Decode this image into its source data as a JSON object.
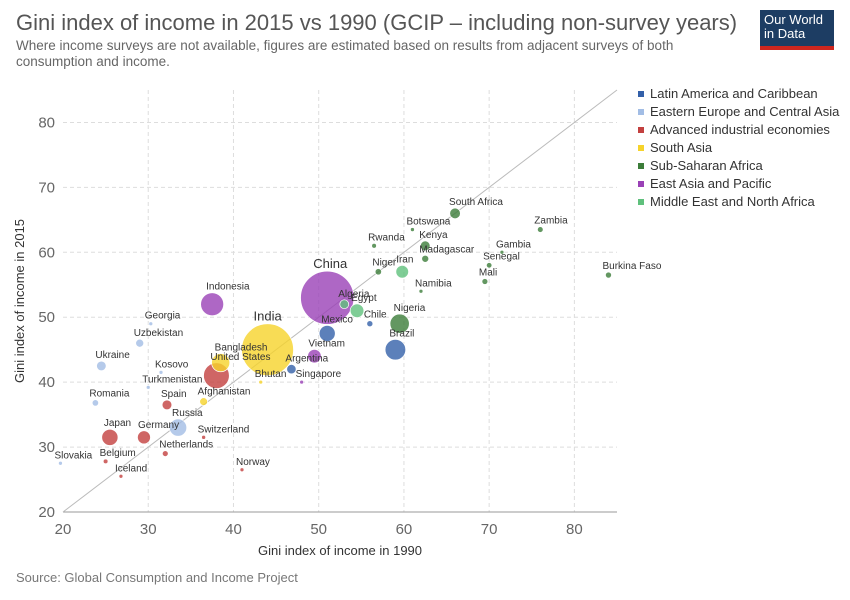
{
  "title": "Gini index of income in 2015 vs 1990 (GCIP – including non-survey years)",
  "subtitle": "Where income surveys are not available, figures are estimated based on results from adjacent surveys of both consumption and income.",
  "logo": {
    "line1": "Our World",
    "line2": "in Data"
  },
  "source": "Source: Global Consumption and Income Project",
  "colors": {
    "Latin America and Caribbean": "#3360a9",
    "Eastern Europe and Central Asia": "#a2bde5",
    "Advanced industrial economies": "#c3403f",
    "South Asia": "#f6d32b",
    "Sub-Saharan Africa": "#3c7d39",
    "East Asia and Pacific": "#9a41b6",
    "Middle East and North Africa": "#5fc07c"
  },
  "chart_data": {
    "type": "scatter",
    "xlabel": "Gini index of income in 1990",
    "ylabel": "Gini index of income in 2015",
    "xlim": [
      20,
      85
    ],
    "ylim": [
      20,
      85
    ],
    "xticks": [
      20,
      30,
      40,
      50,
      60,
      70,
      80
    ],
    "yticks": [
      20,
      30,
      40,
      50,
      60,
      70,
      80
    ],
    "grid": true,
    "legend_position": "right",
    "legend": [
      "Latin America and Caribbean",
      "Eastern Europe and Central Asia",
      "Advanced industrial economies",
      "South Asia",
      "Sub-Saharan Africa",
      "East Asia and Pacific",
      "Middle East and North Africa"
    ],
    "points": [
      {
        "label": "China",
        "x": 51,
        "y": 53,
        "size": 1370,
        "region": "East Asia and Pacific",
        "big": true
      },
      {
        "label": "India",
        "x": 44,
        "y": 45,
        "size": 1300,
        "region": "South Asia",
        "big": true
      },
      {
        "label": "Indonesia",
        "x": 37.5,
        "y": 52,
        "size": 255,
        "region": "East Asia and Pacific"
      },
      {
        "label": "United States",
        "x": 38,
        "y": 41,
        "size": 320,
        "region": "Advanced industrial economies"
      },
      {
        "label": "Bangladesh",
        "x": 38.5,
        "y": 43,
        "size": 160,
        "region": "South Asia"
      },
      {
        "label": "Brazil",
        "x": 59,
        "y": 45,
        "size": 205,
        "region": "Latin America and Caribbean"
      },
      {
        "label": "Nigeria",
        "x": 59.5,
        "y": 49,
        "size": 180,
        "region": "Sub-Saharan Africa"
      },
      {
        "label": "Mexico",
        "x": 51,
        "y": 47.5,
        "size": 125,
        "region": "Latin America and Caribbean"
      },
      {
        "label": "Vietnam",
        "x": 49.5,
        "y": 44,
        "size": 90,
        "region": "East Asia and Pacific"
      },
      {
        "label": "Japan",
        "x": 25.5,
        "y": 31.5,
        "size": 127,
        "region": "Advanced industrial economies"
      },
      {
        "label": "Germany",
        "x": 29.5,
        "y": 31.5,
        "size": 82,
        "region": "Advanced industrial economies"
      },
      {
        "label": "Russia",
        "x": 33.5,
        "y": 33,
        "size": 145,
        "region": "Eastern Europe and Central Asia"
      },
      {
        "label": "Egypt",
        "x": 54.5,
        "y": 51,
        "size": 90,
        "region": "Middle East and North Africa"
      },
      {
        "label": "Iran",
        "x": 59.8,
        "y": 57,
        "size": 78,
        "region": "Middle East and North Africa"
      },
      {
        "label": "Algeria",
        "x": 53,
        "y": 52,
        "size": 38,
        "region": "Middle East and North Africa"
      },
      {
        "label": "Argentina",
        "x": 46.8,
        "y": 42,
        "size": 43,
        "region": "Latin America and Caribbean"
      },
      {
        "label": "Chile",
        "x": 56,
        "y": 49,
        "size": 18,
        "region": "Latin America and Caribbean"
      },
      {
        "label": "Spain",
        "x": 32.2,
        "y": 36.5,
        "size": 46,
        "region": "Advanced industrial economies"
      },
      {
        "label": "Afghanistan",
        "x": 36.5,
        "y": 37,
        "size": 30,
        "region": "South Asia"
      },
      {
        "label": "Switzerland",
        "x": 36.5,
        "y": 31.5,
        "size": 8,
        "region": "Advanced industrial economies"
      },
      {
        "label": "Netherlands",
        "x": 32,
        "y": 29,
        "size": 17,
        "region": "Advanced industrial economies"
      },
      {
        "label": "Norway",
        "x": 41,
        "y": 26.5,
        "size": 5,
        "region": "Advanced industrial economies"
      },
      {
        "label": "Iceland",
        "x": 26.8,
        "y": 25.5,
        "size": 0.3,
        "region": "Advanced industrial economies"
      },
      {
        "label": "Belgium",
        "x": 25,
        "y": 27.8,
        "size": 11,
        "region": "Advanced industrial economies"
      },
      {
        "label": "Slovakia",
        "x": 19.7,
        "y": 27.5,
        "size": 5,
        "region": "Eastern Europe and Central Asia"
      },
      {
        "label": "Romania",
        "x": 23.8,
        "y": 36.8,
        "size": 20,
        "region": "Eastern Europe and Central Asia"
      },
      {
        "label": "Ukraine",
        "x": 24.5,
        "y": 42.5,
        "size": 45,
        "region": "Eastern Europe and Central Asia"
      },
      {
        "label": "Uzbekistan",
        "x": 29,
        "y": 46,
        "size": 31,
        "region": "Eastern Europe and Central Asia"
      },
      {
        "label": "Georgia",
        "x": 30.3,
        "y": 49,
        "size": 4,
        "region": "Eastern Europe and Central Asia"
      },
      {
        "label": "Kosovo",
        "x": 31.5,
        "y": 41.5,
        "size": 2,
        "region": "Eastern Europe and Central Asia"
      },
      {
        "label": "Turkmenistan",
        "x": 30,
        "y": 39.2,
        "size": 5,
        "region": "Eastern Europe and Central Asia"
      },
      {
        "label": "Bhutan",
        "x": 43.2,
        "y": 40,
        "size": 1,
        "region": "South Asia"
      },
      {
        "label": "Singapore",
        "x": 48,
        "y": 40,
        "size": 6,
        "region": "East Asia and Pacific"
      },
      {
        "label": "South Africa",
        "x": 66,
        "y": 66,
        "size": 55,
        "region": "Sub-Saharan Africa"
      },
      {
        "label": "Botswana",
        "x": 61,
        "y": 63.5,
        "size": 2,
        "region": "Sub-Saharan Africa"
      },
      {
        "label": "Zambia",
        "x": 76,
        "y": 63.5,
        "size": 16,
        "region": "Sub-Saharan Africa"
      },
      {
        "label": "Rwanda",
        "x": 56.5,
        "y": 61,
        "size": 11,
        "region": "Sub-Saharan Africa"
      },
      {
        "label": "Kenya",
        "x": 62.5,
        "y": 61,
        "size": 46,
        "region": "Sub-Saharan Africa"
      },
      {
        "label": "Gambia",
        "x": 71.5,
        "y": 60,
        "size": 2,
        "region": "Sub-Saharan Africa"
      },
      {
        "label": "Madagascar",
        "x": 62.5,
        "y": 59,
        "size": 24,
        "region": "Sub-Saharan Africa"
      },
      {
        "label": "Senegal",
        "x": 70,
        "y": 58,
        "size": 15,
        "region": "Sub-Saharan Africa"
      },
      {
        "label": "Niger",
        "x": 57,
        "y": 57,
        "size": 20,
        "region": "Sub-Saharan Africa"
      },
      {
        "label": "Mali",
        "x": 69.5,
        "y": 55.5,
        "size": 17,
        "region": "Sub-Saharan Africa"
      },
      {
        "label": "Burkina Faso",
        "x": 84,
        "y": 56.5,
        "size": 18,
        "region": "Sub-Saharan Africa"
      },
      {
        "label": "Namibia",
        "x": 62,
        "y": 54,
        "size": 2.4,
        "region": "Sub-Saharan Africa"
      }
    ]
  }
}
